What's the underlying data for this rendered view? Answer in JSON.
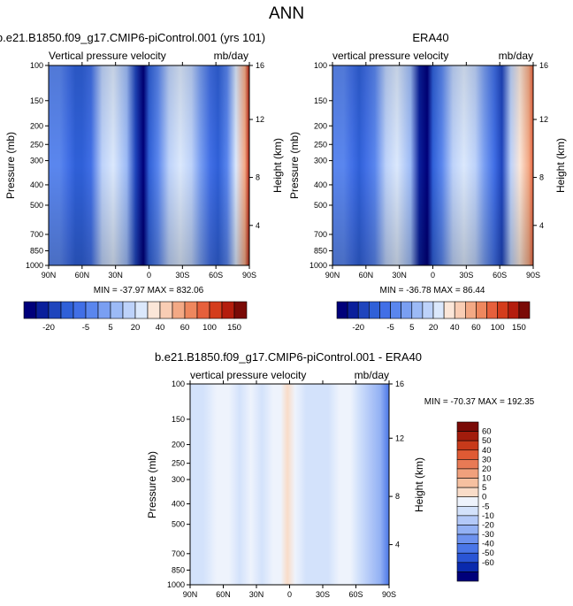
{
  "page_title": "ANN",
  "colors": {
    "palette": [
      "#00007a",
      "#0a1f9b",
      "#1f45bd",
      "#2f60d8",
      "#416fe6",
      "#5a86ee",
      "#7a9ff2",
      "#9cbaf6",
      "#bdd2fa",
      "#dbe8fc",
      "#fbe6d8",
      "#f9cdb4",
      "#f3a985",
      "#ee875e",
      "#e6603c",
      "#d43d1c",
      "#b41d0d",
      "#7a0a06"
    ],
    "diff_palette": [
      "#00007a",
      "#0a2aad",
      "#2a55d5",
      "#4a76e8",
      "#6d92ef",
      "#93b1f4",
      "#b3c9f8",
      "#d3e2fb",
      "#eef3fc",
      "#f9dcc8",
      "#f6c0a0",
      "#f0a07c",
      "#e87a55",
      "#df5a34",
      "#c73a1a",
      "#a21c0c",
      "#7a0a06"
    ]
  },
  "chart_data": [
    {
      "type": "heatmap",
      "title": "b.e21.B1850.f09_g17.CMIP6-piControl.001 (yrs 101)",
      "subtitle_left": "Vertical pressure velocity",
      "subtitle_right": "mb/day",
      "ylabel": "Pressure (mb)",
      "ylabel_right": "Height (km)",
      "x_ticks": [
        "90N",
        "60N",
        "30N",
        "0",
        "30S",
        "60S",
        "90S"
      ],
      "y_ticks": [
        "100",
        "150",
        "200",
        "250",
        "300",
        "400",
        "500",
        "700",
        "850",
        "1000"
      ],
      "y_ticks_right": [
        "16",
        "12",
        "8",
        "4"
      ],
      "xlim": [
        90,
        -90
      ],
      "ylim": [
        1000,
        100
      ],
      "stats": "MIN = -37.97  MAX = 832.06",
      "colorbar_labels": [
        "-20",
        "-5",
        "5",
        "20",
        "40",
        "60",
        "100",
        "150"
      ],
      "lat_profile": [
        {
          "lat": 90,
          "value": -8
        },
        {
          "lat": 80,
          "value": -10
        },
        {
          "lat": 72,
          "value": -14
        },
        {
          "lat": 66,
          "value": -18
        },
        {
          "lat": 60,
          "value": -16
        },
        {
          "lat": 52,
          "value": -11
        },
        {
          "lat": 42,
          "value": 8
        },
        {
          "lat": 32,
          "value": 12
        },
        {
          "lat": 20,
          "value": 4
        },
        {
          "lat": 12,
          "value": -25
        },
        {
          "lat": 5,
          "value": -32
        },
        {
          "lat": 0,
          "value": -18
        },
        {
          "lat": -8,
          "value": -10
        },
        {
          "lat": -18,
          "value": 8
        },
        {
          "lat": -28,
          "value": 12
        },
        {
          "lat": -38,
          "value": 7
        },
        {
          "lat": -46,
          "value": -3
        },
        {
          "lat": -55,
          "value": -12
        },
        {
          "lat": -62,
          "value": -20
        },
        {
          "lat": -70,
          "value": -8
        },
        {
          "lat": -78,
          "value": 15
        },
        {
          "lat": -86,
          "value": 40
        },
        {
          "lat": -90,
          "value": 120
        }
      ]
    },
    {
      "type": "heatmap",
      "title": "ERA40",
      "subtitle_left": "vertical pressure velocity",
      "subtitle_right": "mb/day",
      "ylabel": "Pressure (mb)",
      "ylabel_right": "Height (km)",
      "x_ticks": [
        "90N",
        "60N",
        "30N",
        "0",
        "30S",
        "60S",
        "90S"
      ],
      "y_ticks": [
        "100",
        "150",
        "200",
        "250",
        "300",
        "400",
        "500",
        "700",
        "850",
        "1000"
      ],
      "y_ticks_right": [
        "16",
        "12",
        "8",
        "4"
      ],
      "xlim": [
        90,
        -90
      ],
      "ylim": [
        1000,
        100
      ],
      "stats": "MIN = -36.78  MAX =  86.44",
      "colorbar_labels": [
        "-20",
        "-5",
        "5",
        "20",
        "40",
        "60",
        "100",
        "150"
      ],
      "lat_profile": [
        {
          "lat": 90,
          "value": -8
        },
        {
          "lat": 80,
          "value": -10
        },
        {
          "lat": 72,
          "value": -14
        },
        {
          "lat": 66,
          "value": -18
        },
        {
          "lat": 60,
          "value": -14
        },
        {
          "lat": 52,
          "value": -9
        },
        {
          "lat": 42,
          "value": 6
        },
        {
          "lat": 32,
          "value": 10
        },
        {
          "lat": 20,
          "value": 2
        },
        {
          "lat": 12,
          "value": -28
        },
        {
          "lat": 5,
          "value": -34
        },
        {
          "lat": 0,
          "value": -20
        },
        {
          "lat": -8,
          "value": -10
        },
        {
          "lat": -18,
          "value": 8
        },
        {
          "lat": -28,
          "value": 14
        },
        {
          "lat": -38,
          "value": 6
        },
        {
          "lat": -46,
          "value": -5
        },
        {
          "lat": -55,
          "value": -15
        },
        {
          "lat": -62,
          "value": -24
        },
        {
          "lat": -70,
          "value": 8
        },
        {
          "lat": -78,
          "value": 28
        },
        {
          "lat": -86,
          "value": 45
        },
        {
          "lat": -90,
          "value": 60
        }
      ]
    },
    {
      "type": "heatmap",
      "title": "b.e21.B1850.f09_g17.CMIP6-piControl.001 - ERA40",
      "subtitle_left": "vertical pressure velocity",
      "subtitle_right": "mb/day",
      "ylabel": "Pressure (mb)",
      "ylabel_right": "Height (km)",
      "x_ticks": [
        "90N",
        "60N",
        "30N",
        "0",
        "30S",
        "60S",
        "90S"
      ],
      "y_ticks": [
        "100",
        "150",
        "200",
        "250",
        "300",
        "400",
        "500",
        "700",
        "850",
        "1000"
      ],
      "y_ticks_right": [
        "16",
        "12",
        "8",
        "4"
      ],
      "xlim": [
        90,
        -90
      ],
      "ylim": [
        1000,
        100
      ],
      "stats": "MIN = -70.37  MAX = 192.35",
      "colorbar_labels": [
        "60",
        "50",
        "40",
        "30",
        "20",
        "10",
        "5",
        "0",
        "-5",
        "-10",
        "-20",
        "-30",
        "-40",
        "-50",
        "-60"
      ],
      "lat_profile": [
        {
          "lat": 90,
          "value": -2
        },
        {
          "lat": 78,
          "value": -3
        },
        {
          "lat": 66,
          "value": 2
        },
        {
          "lat": 55,
          "value": 3
        },
        {
          "lat": 45,
          "value": -2
        },
        {
          "lat": 35,
          "value": 1
        },
        {
          "lat": 25,
          "value": -2
        },
        {
          "lat": 15,
          "value": 2
        },
        {
          "lat": 8,
          "value": 4
        },
        {
          "lat": 2,
          "value": 6
        },
        {
          "lat": -5,
          "value": 3
        },
        {
          "lat": -15,
          "value": -2
        },
        {
          "lat": -25,
          "value": -3
        },
        {
          "lat": -35,
          "value": -2
        },
        {
          "lat": -45,
          "value": 3
        },
        {
          "lat": -55,
          "value": 4
        },
        {
          "lat": -62,
          "value": -3
        },
        {
          "lat": -72,
          "value": -8
        },
        {
          "lat": -82,
          "value": -20
        },
        {
          "lat": -90,
          "value": -40
        }
      ]
    }
  ]
}
